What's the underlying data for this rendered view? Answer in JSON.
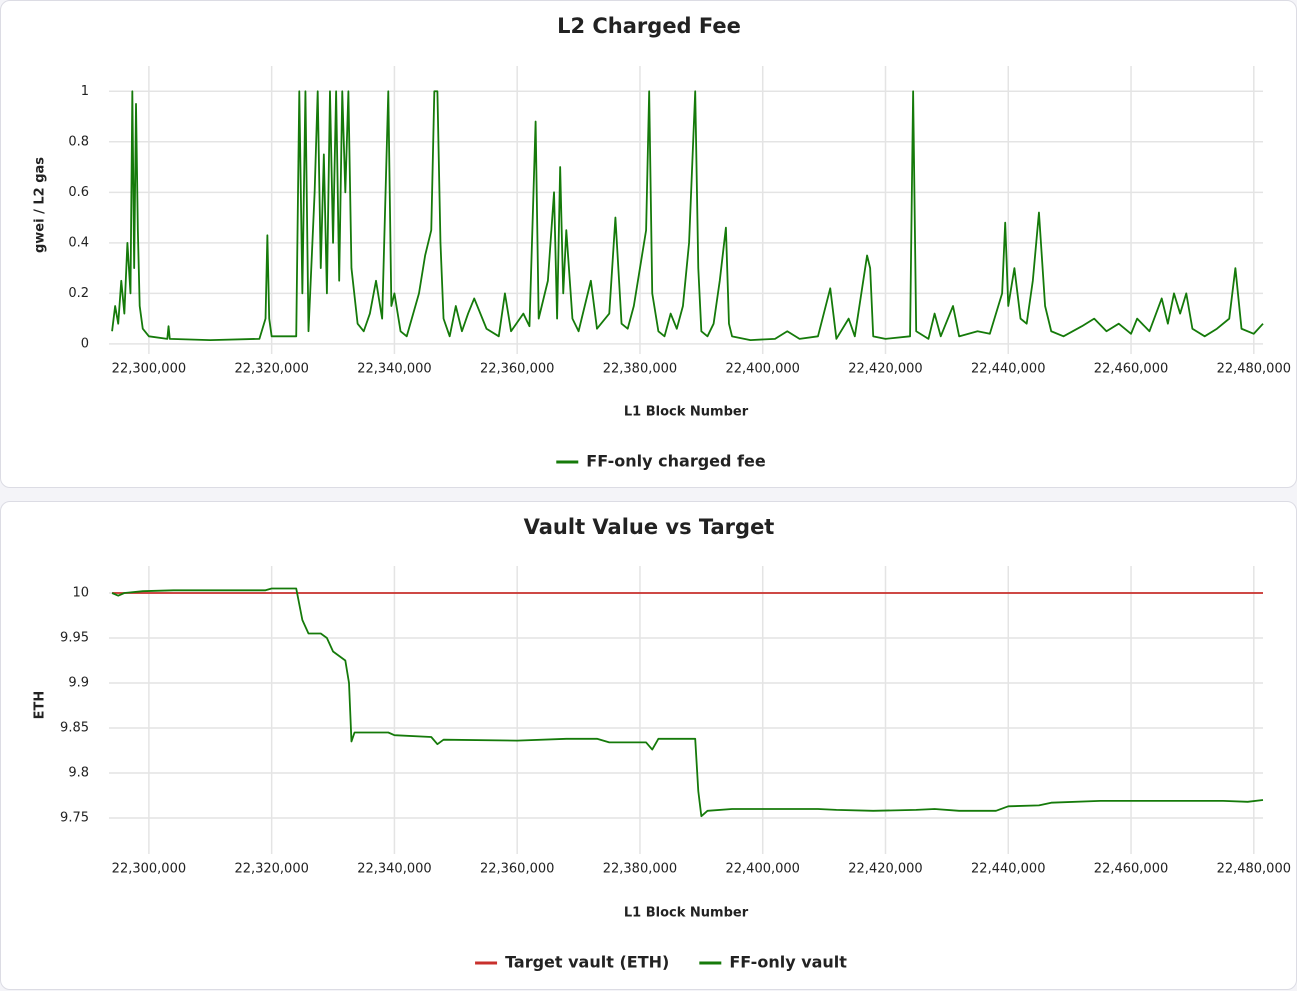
{
  "chart_data": [
    {
      "type": "line",
      "title": "L2 Charged Fee",
      "x_label": "L1 Block Number",
      "y_label": "gwei / L2 gas",
      "xlim": [
        22293500,
        22481500
      ],
      "xticks": [
        {
          "value": 22300000,
          "label": "22,300,000"
        },
        {
          "value": 22320000,
          "label": "22,320,000"
        },
        {
          "value": 22340000,
          "label": "22,340,000"
        },
        {
          "value": 22360000,
          "label": "22,360,000"
        },
        {
          "value": 22380000,
          "label": "22,380,000"
        },
        {
          "value": 22400000,
          "label": "22,400,000"
        },
        {
          "value": 22420000,
          "label": "22,420,000"
        },
        {
          "value": 22440000,
          "label": "22,440,000"
        },
        {
          "value": 22460000,
          "label": "22,460,000"
        },
        {
          "value": 22480000,
          "label": "22,480,000"
        }
      ],
      "ylim": [
        -0.04,
        1.1
      ],
      "yticks": [
        0,
        0.2,
        0.4,
        0.6,
        0.8,
        1
      ],
      "grid": true,
      "legend": "bottom",
      "series": [
        {
          "name": "FF-only charged fee",
          "color": "#157a0a",
          "x": [
            22294000,
            22294500,
            22295000,
            22295500,
            22296000,
            22296500,
            22297000,
            22297300,
            22297600,
            22297900,
            22298200,
            22298500,
            22299000,
            22300000,
            22303000,
            22303200,
            22303400,
            22310000,
            22318000,
            22319000,
            22319300,
            22319600,
            22320000,
            22324000,
            22324500,
            22325000,
            22325500,
            22326000,
            22327000,
            22327500,
            22328000,
            22328500,
            22329000,
            22329500,
            22330000,
            22330500,
            22331000,
            22331500,
            22332000,
            22332500,
            22333000,
            22334000,
            22335000,
            22336000,
            22337000,
            22338000,
            22339000,
            22339500,
            22340000,
            22341000,
            22342000,
            22344000,
            22345000,
            22346000,
            22346500,
            22347000,
            22347500,
            22348000,
            22349000,
            22350000,
            22351000,
            22352000,
            22353000,
            22355000,
            22357000,
            22358000,
            22359000,
            22361000,
            22362000,
            22363000,
            22363500,
            22365000,
            22366000,
            22366500,
            22367000,
            22367500,
            22368000,
            22369000,
            22370000,
            22372000,
            22373000,
            22375000,
            22376000,
            22377000,
            22378000,
            22379000,
            22381000,
            22381500,
            22382000,
            22383000,
            22384000,
            22385000,
            22386000,
            22387000,
            22388000,
            22389000,
            22389500,
            22390000,
            22391000,
            22392000,
            22393000,
            22394000,
            22394500,
            22395000,
            22398000,
            22402000,
            22404000,
            22406000,
            22409000,
            22411000,
            22412000,
            22414000,
            22415000,
            22417000,
            22417500,
            22418000,
            22420000,
            22424000,
            22424500,
            22425000,
            22427000,
            22428000,
            22429000,
            22431000,
            22432000,
            22435000,
            22437000,
            22439000,
            22439500,
            22440000,
            22441000,
            22442000,
            22443000,
            22444000,
            22445000,
            22446000,
            22447000,
            22449000,
            22452000,
            22454000,
            22456000,
            22458000,
            22460000,
            22461000,
            22463000,
            22465000,
            22466000,
            22467000,
            22468000,
            22469000,
            22470000,
            22472000,
            22474000,
            22476000,
            22477000,
            22478000,
            22480000,
            22481500
          ],
          "values": [
            0.05,
            0.15,
            0.08,
            0.25,
            0.12,
            0.4,
            0.2,
            1.0,
            0.3,
            0.95,
            0.45,
            0.15,
            0.06,
            0.03,
            0.02,
            0.07,
            0.02,
            0.015,
            0.02,
            0.1,
            0.43,
            0.1,
            0.03,
            0.03,
            1.0,
            0.2,
            1.0,
            0.05,
            0.6,
            1.0,
            0.3,
            0.75,
            0.2,
            1.0,
            0.4,
            1.0,
            0.25,
            1.0,
            0.6,
            1.0,
            0.3,
            0.08,
            0.05,
            0.12,
            0.25,
            0.1,
            1.0,
            0.15,
            0.2,
            0.05,
            0.03,
            0.2,
            0.35,
            0.45,
            1.0,
            1.0,
            0.4,
            0.1,
            0.03,
            0.15,
            0.05,
            0.12,
            0.18,
            0.06,
            0.03,
            0.2,
            0.05,
            0.12,
            0.07,
            0.88,
            0.1,
            0.25,
            0.6,
            0.1,
            0.7,
            0.2,
            0.45,
            0.1,
            0.05,
            0.25,
            0.06,
            0.12,
            0.5,
            0.08,
            0.06,
            0.15,
            0.45,
            1.0,
            0.2,
            0.05,
            0.03,
            0.12,
            0.06,
            0.15,
            0.4,
            1.0,
            0.3,
            0.05,
            0.03,
            0.08,
            0.25,
            0.46,
            0.08,
            0.03,
            0.015,
            0.02,
            0.05,
            0.02,
            0.03,
            0.22,
            0.02,
            0.1,
            0.03,
            0.35,
            0.3,
            0.03,
            0.02,
            0.03,
            1.0,
            0.05,
            0.02,
            0.12,
            0.03,
            0.15,
            0.03,
            0.05,
            0.04,
            0.2,
            0.48,
            0.15,
            0.3,
            0.1,
            0.08,
            0.25,
            0.52,
            0.15,
            0.05,
            0.03,
            0.07,
            0.1,
            0.05,
            0.08,
            0.04,
            0.1,
            0.05,
            0.18,
            0.08,
            0.2,
            0.12,
            0.2,
            0.06,
            0.03,
            0.06,
            0.1,
            0.3,
            0.06,
            0.04,
            0.08
          ]
        }
      ]
    },
    {
      "type": "line",
      "title": "Vault Value vs Target",
      "x_label": "L1 Block Number",
      "y_label": "ETH",
      "xlim": [
        22293500,
        22481500
      ],
      "xticks": [
        {
          "value": 22300000,
          "label": "22,300,000"
        },
        {
          "value": 22320000,
          "label": "22,320,000"
        },
        {
          "value": 22340000,
          "label": "22,340,000"
        },
        {
          "value": 22360000,
          "label": "22,360,000"
        },
        {
          "value": 22380000,
          "label": "22,380,000"
        },
        {
          "value": 22400000,
          "label": "22,400,000"
        },
        {
          "value": 22420000,
          "label": "22,420,000"
        },
        {
          "value": 22440000,
          "label": "22,440,000"
        },
        {
          "value": 22460000,
          "label": "22,460,000"
        },
        {
          "value": 22480000,
          "label": "22,480,000"
        }
      ],
      "ylim": [
        9.71,
        10.03
      ],
      "yticks": [
        9.75,
        9.8,
        9.85,
        9.9,
        9.95,
        10
      ],
      "grid": true,
      "legend": "bottom",
      "series": [
        {
          "name": "Target vault (ETH)",
          "color": "#c8302c",
          "x": [
            22294000,
            22481500
          ],
          "values": [
            10,
            10
          ]
        },
        {
          "name": "FF-only vault",
          "color": "#157a0a",
          "x": [
            22294000,
            22295000,
            22296000,
            22299000,
            22304000,
            22319000,
            22320000,
            22324000,
            22325000,
            22326000,
            22328000,
            22329000,
            22330000,
            22332000,
            22332600,
            22333000,
            22333500,
            22339000,
            22340000,
            22346000,
            22347000,
            22348000,
            22360000,
            22368000,
            22373000,
            22375000,
            22381000,
            22382000,
            22383000,
            22389000,
            22389500,
            22390000,
            22391000,
            22395000,
            22409000,
            22412000,
            22418000,
            22425000,
            22428000,
            22432000,
            22438000,
            22440000,
            22445000,
            22447000,
            22455000,
            22465000,
            22475000,
            22479000,
            22481500
          ],
          "values": [
            10.0,
            9.997,
            10.0,
            10.002,
            10.003,
            10.003,
            10.005,
            10.005,
            9.97,
            9.955,
            9.955,
            9.95,
            9.935,
            9.925,
            9.9,
            9.835,
            9.845,
            9.845,
            9.842,
            9.84,
            9.832,
            9.837,
            9.836,
            9.838,
            9.838,
            9.834,
            9.834,
            9.826,
            9.838,
            9.838,
            9.78,
            9.752,
            9.758,
            9.76,
            9.76,
            9.759,
            9.758,
            9.759,
            9.76,
            9.758,
            9.758,
            9.763,
            9.764,
            9.767,
            9.769,
            9.769,
            9.769,
            9.768,
            9.77
          ]
        }
      ]
    }
  ]
}
